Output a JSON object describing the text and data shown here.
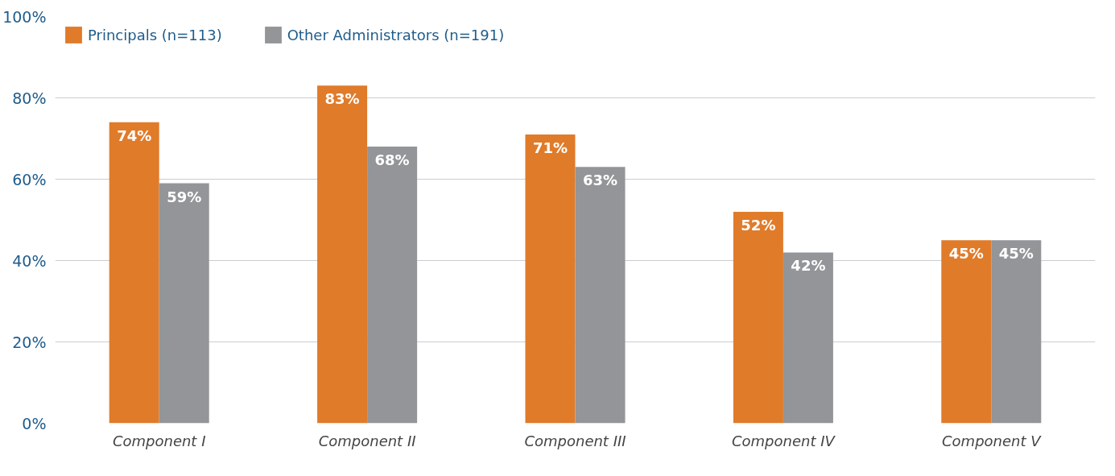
{
  "chart_data": {
    "type": "bar",
    "categories": [
      "Component I",
      "Component II",
      "Component III",
      "Component IV",
      "Component V"
    ],
    "series": [
      {
        "name": "Principals (n=113)",
        "color": "#e07b2a",
        "values": [
          74,
          83,
          71,
          52,
          45
        ]
      },
      {
        "name": "Other Administrators (n=191)",
        "color": "#939598",
        "values": [
          59,
          68,
          63,
          42,
          45
        ]
      }
    ],
    "ylim": [
      0,
      100
    ],
    "yticks": [
      {
        "value": 0,
        "label": "0%"
      },
      {
        "value": 20,
        "label": "20%"
      },
      {
        "value": 40,
        "label": "40%"
      },
      {
        "value": 60,
        "label": "60%"
      },
      {
        "value": 80,
        "label": "80%"
      },
      {
        "value": 100,
        "label": "100%"
      }
    ],
    "value_labels": [
      [
        "74%",
        "83%",
        "71%",
        "52%",
        "45%"
      ],
      [
        "59%",
        "68%",
        "63%",
        "42%",
        "45%"
      ]
    ],
    "grid": "y",
    "legend": "top left"
  }
}
